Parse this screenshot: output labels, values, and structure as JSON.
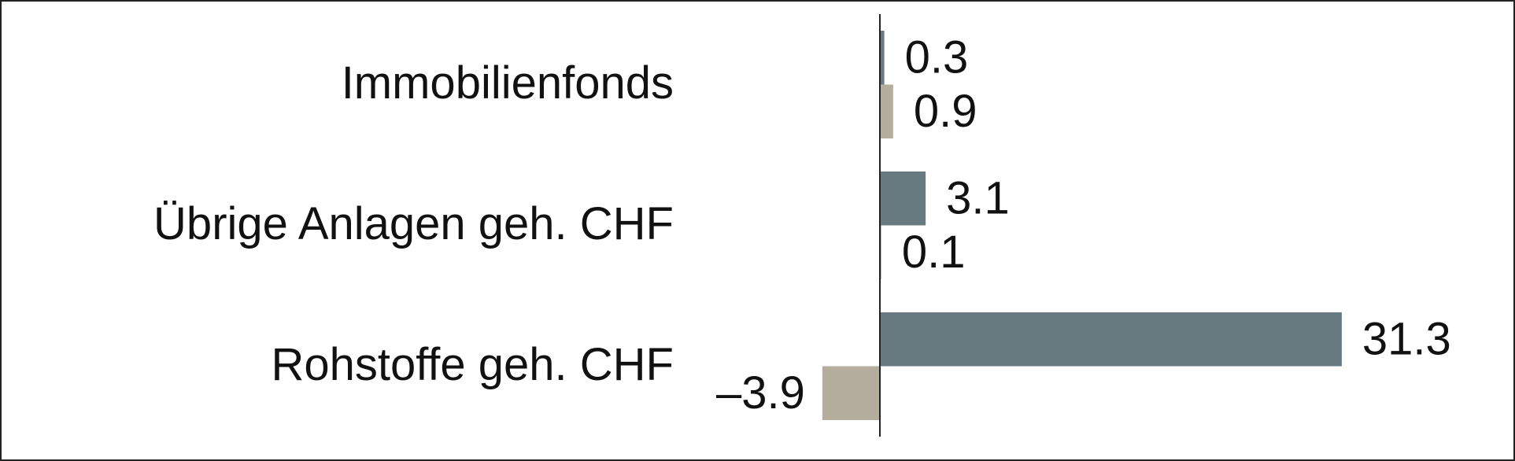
{
  "chart_data": {
    "type": "hbar",
    "categories": [
      "Immobilienfonds",
      "Übrige Anlagen geh. CHF",
      "Rohstoffe geh. CHF"
    ],
    "series": [
      {
        "color": "#667a80",
        "values": [
          0.3,
          3.1,
          31.3
        ]
      },
      {
        "color": "#b5ad9e",
        "values": [
          0.9,
          0.1,
          -3.9
        ],
        "value_labels": [
          "0.9",
          "0.1",
          "–3.9"
        ]
      }
    ],
    "xlim": [
      -10,
      40
    ]
  }
}
